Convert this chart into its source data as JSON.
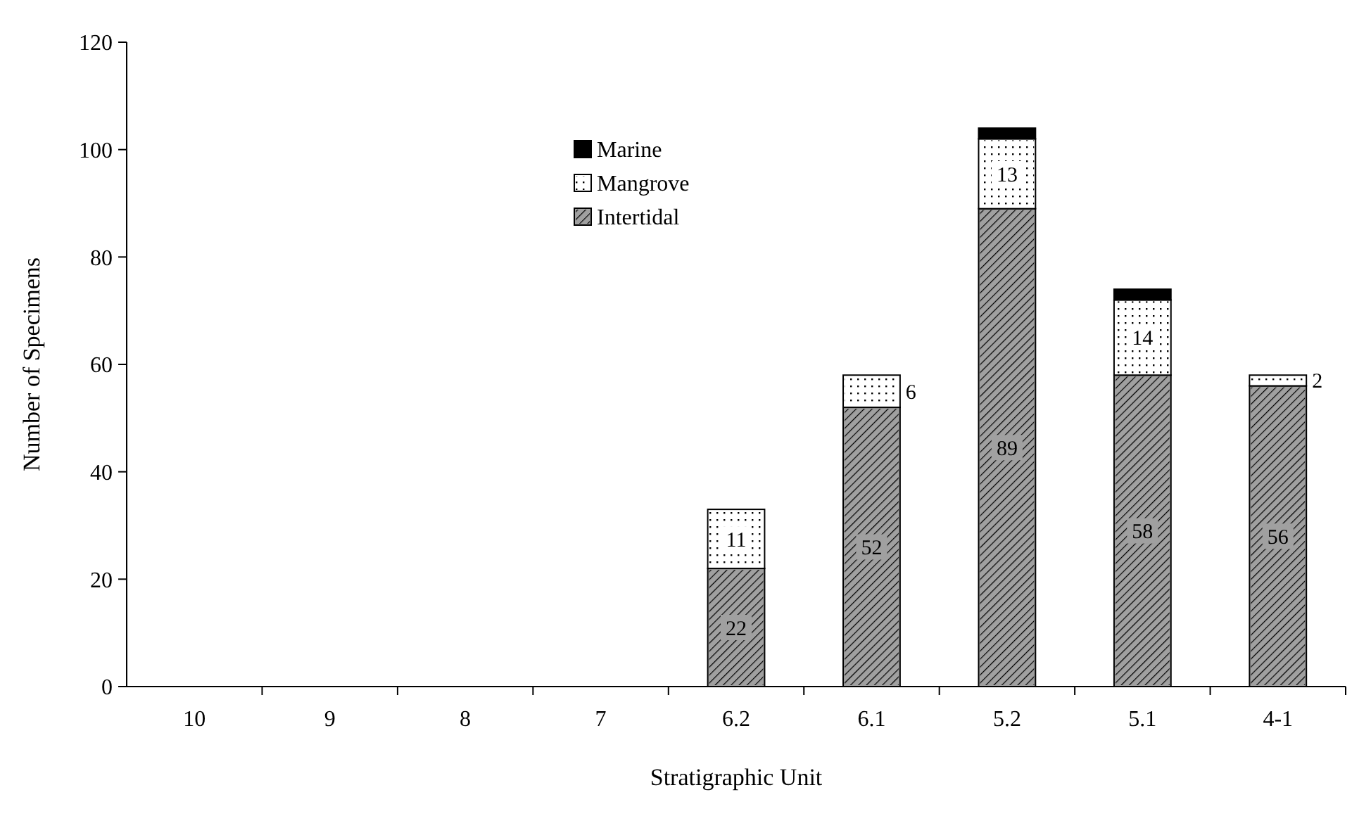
{
  "chart_data": {
    "type": "bar",
    "stacked": true,
    "xlabel": "Stratigraphic Unit",
    "ylabel": "Number of Specimens",
    "categories": [
      "10",
      "9",
      "8",
      "7",
      "6.2",
      "6.1",
      "5.2",
      "5.1",
      "4-1"
    ],
    "series": [
      {
        "name": "Intertidal",
        "color": "#a0a0a0",
        "values": [
          null,
          null,
          null,
          null,
          22,
          52,
          89,
          58,
          56
        ],
        "value_labels": [
          null,
          null,
          null,
          null,
          "22",
          "52",
          "89",
          "58",
          "56"
        ]
      },
      {
        "name": "Mangrove",
        "color": "#ffffff",
        "values": [
          null,
          null,
          null,
          null,
          11,
          6,
          13,
          14,
          2
        ],
        "value_labels": [
          null,
          null,
          null,
          null,
          "11",
          "6",
          "13",
          "14",
          "2"
        ]
      },
      {
        "name": "Marine",
        "color": "#000000",
        "values": [
          null,
          null,
          null,
          null,
          null,
          null,
          2,
          2,
          null
        ]
      }
    ],
    "ylim": [
      0,
      120
    ],
    "yticks": [
      0,
      20,
      40,
      60,
      80,
      100,
      120
    ],
    "legend": "top",
    "grid": false
  }
}
